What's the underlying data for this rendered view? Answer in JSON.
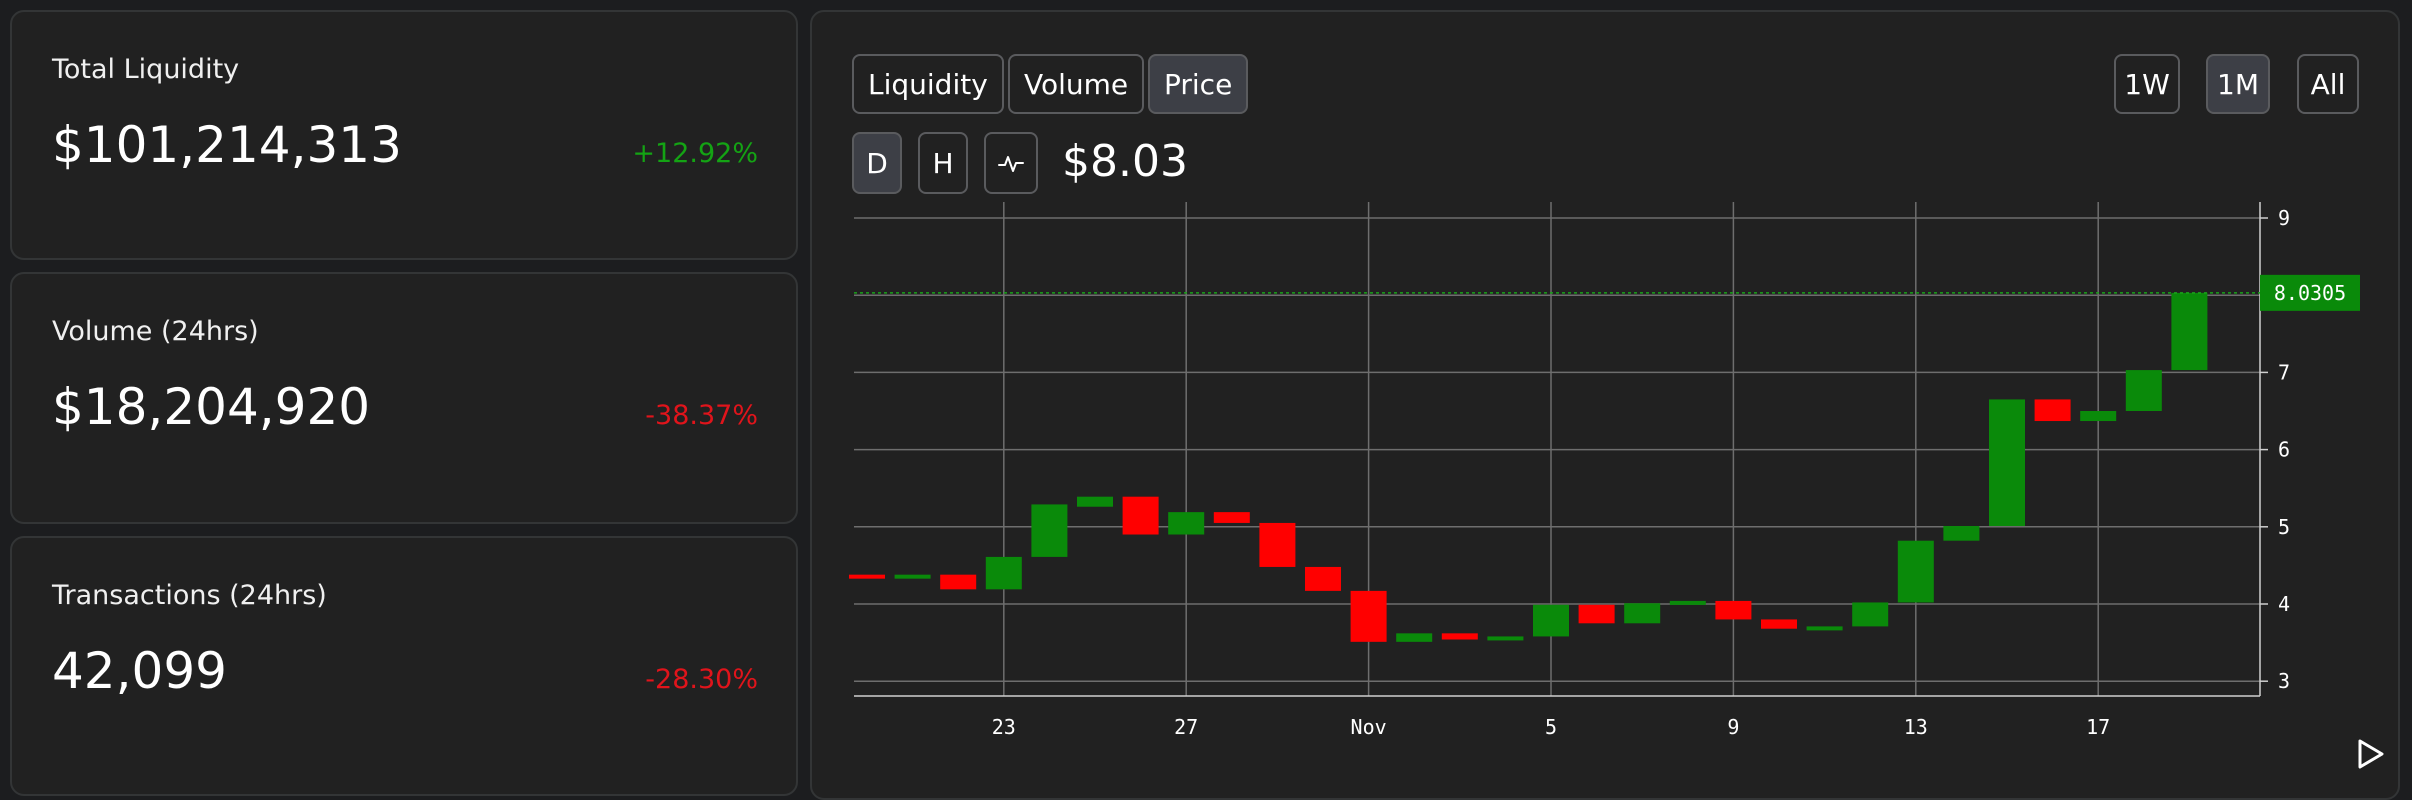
{
  "stats": [
    {
      "label": "Total Liquidity",
      "value": "$101,214,313",
      "change": "+12.92%",
      "direction": "up"
    },
    {
      "label": "Volume (24hrs)",
      "value": "$18,204,920",
      "change": "-38.37%",
      "direction": "down"
    },
    {
      "label": "Transactions (24hrs)",
      "value": "42,099",
      "change": "-28.30%",
      "direction": "down"
    }
  ],
  "tabs": {
    "liquidity": "Liquidity",
    "volume": "Volume",
    "price": "Price",
    "active": "Price"
  },
  "ranges": {
    "week": "1W",
    "month": "1M",
    "all": "All",
    "active": "1M"
  },
  "intervals": {
    "daily": "D",
    "hourly": "H",
    "line_icon": "line-chart-icon",
    "active": "D"
  },
  "current_price": "$8.03",
  "colors": {
    "up": "#0a8a0a",
    "down": "#ff0000",
    "grid": "#6e6e6e",
    "price_tag_bg": "#0a8a0a"
  },
  "chart_data": {
    "type": "candlestick",
    "x_ticks": [
      "23",
      "27",
      "Nov",
      "5",
      "9",
      "13",
      "17"
    ],
    "y_ticks": [
      "3",
      "4",
      "5",
      "6",
      "7",
      "8",
      "9"
    ],
    "ylim": [
      2.9,
      9.3
    ],
    "current_price_label": "8.0305",
    "current_price_value": 8.0305,
    "candles": [
      {
        "date": "Oct 20",
        "open": 4.38,
        "close": 4.33
      },
      {
        "date": "Oct 21",
        "open": 4.33,
        "close": 4.38
      },
      {
        "date": "Oct 22",
        "open": 4.38,
        "close": 4.19
      },
      {
        "date": "Oct 23",
        "open": 4.19,
        "close": 4.61
      },
      {
        "date": "Oct 24",
        "open": 4.61,
        "close": 5.29
      },
      {
        "date": "Oct 25",
        "open": 5.26,
        "close": 5.39
      },
      {
        "date": "Oct 26",
        "open": 5.39,
        "close": 4.9
      },
      {
        "date": "Oct 27",
        "open": 4.9,
        "close": 5.19
      },
      {
        "date": "Oct 28",
        "open": 5.19,
        "close": 5.05
      },
      {
        "date": "Oct 29",
        "open": 5.05,
        "close": 4.48
      },
      {
        "date": "Oct 30",
        "open": 4.48,
        "close": 4.17
      },
      {
        "date": "Oct 31",
        "open": 4.17,
        "close": 3.51
      },
      {
        "date": "Nov 1",
        "open": 3.51,
        "close": 3.62
      },
      {
        "date": "Nov 2",
        "open": 3.62,
        "close": 3.54
      },
      {
        "date": "Nov 3",
        "open": 3.54,
        "close": 3.58
      },
      {
        "date": "Nov 4",
        "open": 3.58,
        "close": 3.99
      },
      {
        "date": "Nov 5",
        "open": 3.99,
        "close": 3.75
      },
      {
        "date": "Nov 6",
        "open": 3.75,
        "close": 4.01
      },
      {
        "date": "Nov 7",
        "open": 4.01,
        "close": 4.04
      },
      {
        "date": "Nov 8",
        "open": 4.04,
        "close": 3.8
      },
      {
        "date": "Nov 9",
        "open": 3.8,
        "close": 3.68
      },
      {
        "date": "Nov 10",
        "open": 3.68,
        "close": 3.71
      },
      {
        "date": "Nov 11",
        "open": 3.71,
        "close": 4.02
      },
      {
        "date": "Nov 12",
        "open": 4.02,
        "close": 4.82
      },
      {
        "date": "Nov 13",
        "open": 4.82,
        "close": 5.01
      },
      {
        "date": "Nov 14",
        "open": 5.01,
        "close": 6.65
      },
      {
        "date": "Nov 15",
        "open": 6.65,
        "close": 6.37
      },
      {
        "date": "Nov 16",
        "open": 6.37,
        "close": 6.5
      },
      {
        "date": "Nov 17",
        "open": 6.5,
        "close": 7.03
      },
      {
        "date": "Nov 18",
        "open": 7.03,
        "close": 8.03
      }
    ]
  }
}
